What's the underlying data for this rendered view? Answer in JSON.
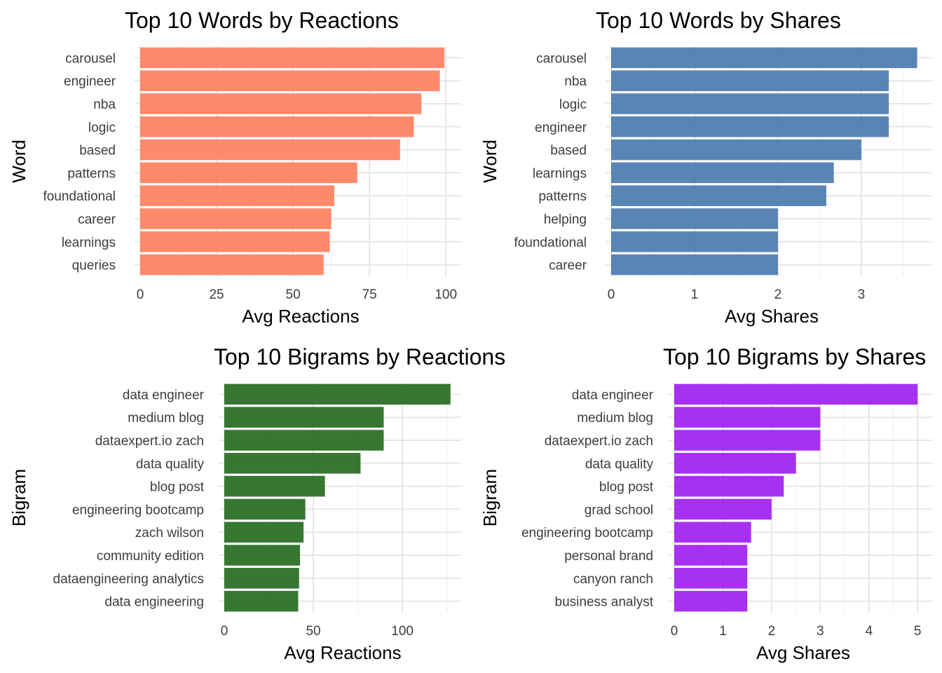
{
  "chart_data": [
    {
      "type": "bar",
      "orientation": "horizontal",
      "title": "Top 10 Words by Reactions",
      "xlabel": "Avg Reactions",
      "ylabel": "Word",
      "color": "#FF7F5E",
      "xlim": [
        0,
        105
      ],
      "ticks": [
        0,
        25,
        50,
        75,
        100
      ],
      "categories": [
        "carousel",
        "engineer",
        "nba",
        "logic",
        "based",
        "patterns",
        "foundational",
        "career",
        "learnings",
        "queries"
      ],
      "values": [
        99.5,
        98,
        92,
        89.5,
        85,
        71,
        63.5,
        62.5,
        62,
        60
      ],
      "grid": true
    },
    {
      "type": "bar",
      "orientation": "horizontal",
      "title": "Top 10 Words by Shares",
      "xlabel": "Avg Shares",
      "ylabel": "Word",
      "color": "#4A7BAE",
      "xlim": [
        0,
        3.85
      ],
      "ticks": [
        0,
        1,
        2,
        3
      ],
      "categories": [
        "carousel",
        "nba",
        "logic",
        "engineer",
        "based",
        "learnings",
        "patterns",
        "helping",
        "foundational",
        "career"
      ],
      "values": [
        3.67,
        3.33,
        3.33,
        3.33,
        3.0,
        2.67,
        2.58,
        2.0,
        2.0,
        2.0
      ],
      "grid": true
    },
    {
      "type": "bar",
      "orientation": "horizontal",
      "title": "Top 10 Bigrams by Reactions",
      "xlabel": "Avg Reactions",
      "ylabel": "Bigram",
      "color": "#256B21",
      "xlim": [
        0,
        133
      ],
      "ticks": [
        0,
        50,
        100
      ],
      "categories": [
        "data engineer",
        "medium blog",
        "dataexpert.io zach",
        "data quality",
        "blog post",
        "engineering bootcamp",
        "zach wilson",
        "community edition",
        "dataengineering analytics",
        "data engineering"
      ],
      "values": [
        127,
        89.5,
        89.5,
        76.5,
        56.5,
        45.5,
        44.5,
        42.5,
        42,
        41.5
      ],
      "grid": true
    },
    {
      "type": "bar",
      "orientation": "horizontal",
      "title": "Top 10 Bigrams by Shares",
      "xlabel": "Avg Shares",
      "ylabel": "Bigram",
      "color": "#A020F0",
      "xlim": [
        0,
        5.3
      ],
      "ticks": [
        0,
        1,
        2,
        3,
        4,
        5
      ],
      "categories": [
        "data engineer",
        "medium blog",
        "dataexpert.io zach",
        "data quality",
        "blog post",
        "grad school",
        "engineering bootcamp",
        "personal brand",
        "canyon ranch",
        "business analyst"
      ],
      "values": [
        5.0,
        3.0,
        3.0,
        2.5,
        2.25,
        2.0,
        1.58,
        1.5,
        1.5,
        1.5
      ],
      "grid": true
    }
  ]
}
